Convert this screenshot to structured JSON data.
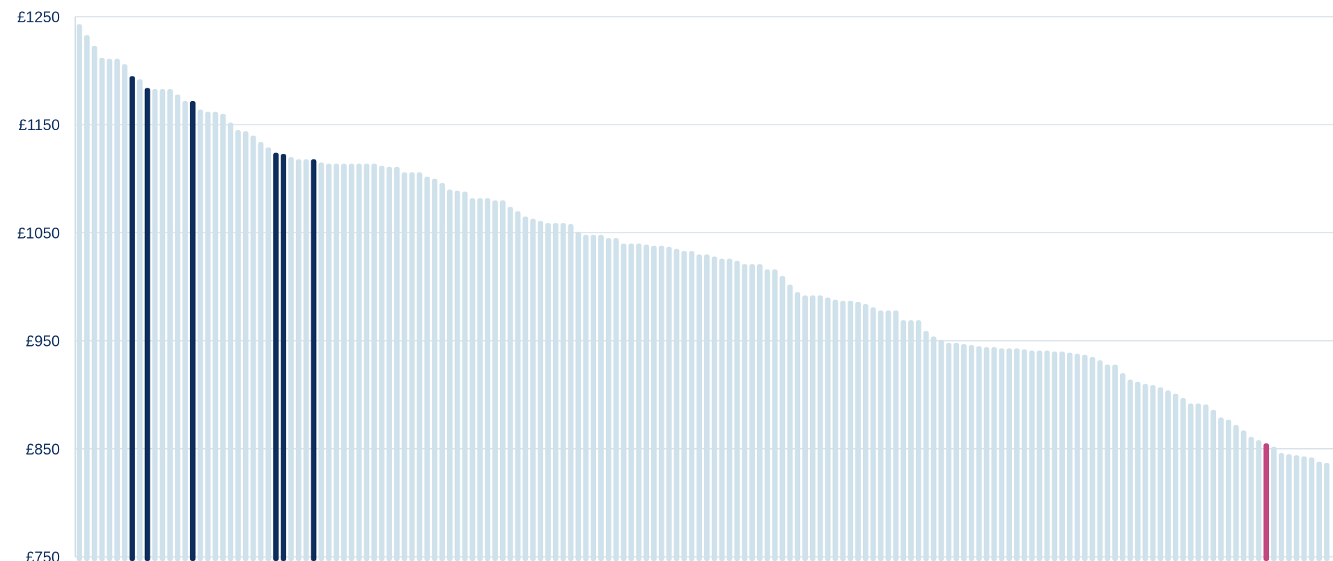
{
  "chart_data": {
    "type": "bar",
    "title": "",
    "xlabel": "",
    "ylabel": "",
    "ylim": [
      750,
      1250
    ],
    "yticks": [
      1250,
      1150,
      1050,
      950,
      850,
      750
    ],
    "ytick_labels": [
      "£1250",
      "£1150",
      "£1050",
      "£950",
      "£850",
      "£750"
    ],
    "grid": true,
    "colors": {
      "default": "#cfe1ea",
      "highlight": "#0d2d5c",
      "accent": "#c2477f",
      "grid": "#d4dfe6",
      "tick_text": "#0d2d5c"
    },
    "values": [
      1243,
      1233,
      1223,
      1212,
      1211,
      1211,
      1206,
      1195,
      1192,
      1184,
      1183,
      1183,
      1183,
      1178,
      1172,
      1172,
      1164,
      1162,
      1162,
      1160,
      1152,
      1145,
      1144,
      1140,
      1134,
      1129,
      1124,
      1123,
      1120,
      1118,
      1118,
      1118,
      1115,
      1114,
      1114,
      1114,
      1114,
      1114,
      1114,
      1114,
      1112,
      1111,
      1111,
      1106,
      1106,
      1106,
      1102,
      1100,
      1096,
      1090,
      1089,
      1088,
      1082,
      1082,
      1082,
      1080,
      1080,
      1074,
      1070,
      1065,
      1063,
      1061,
      1059,
      1059,
      1059,
      1058,
      1051,
      1048,
      1048,
      1048,
      1045,
      1045,
      1040,
      1040,
      1040,
      1039,
      1038,
      1038,
      1037,
      1035,
      1033,
      1033,
      1030,
      1030,
      1028,
      1026,
      1026,
      1024,
      1021,
      1021,
      1021,
      1016,
      1016,
      1010,
      1002,
      995,
      992,
      992,
      992,
      990,
      988,
      987,
      987,
      986,
      984,
      981,
      978,
      978,
      978,
      969,
      969,
      969,
      959,
      954,
      951,
      948,
      948,
      947,
      946,
      945,
      944,
      944,
      943,
      943,
      943,
      942,
      941,
      941,
      941,
      940,
      940,
      939,
      938,
      937,
      935,
      932,
      928,
      928,
      920,
      914,
      912,
      910,
      909,
      907,
      904,
      901,
      897,
      892,
      892,
      891,
      886,
      879,
      877,
      872,
      867,
      861,
      858,
      855,
      852,
      846,
      845,
      844,
      843,
      842,
      838,
      837
    ],
    "highlight_indices": [
      7,
      9,
      15,
      26,
      27,
      31
    ],
    "accent_indices": [
      157
    ]
  }
}
